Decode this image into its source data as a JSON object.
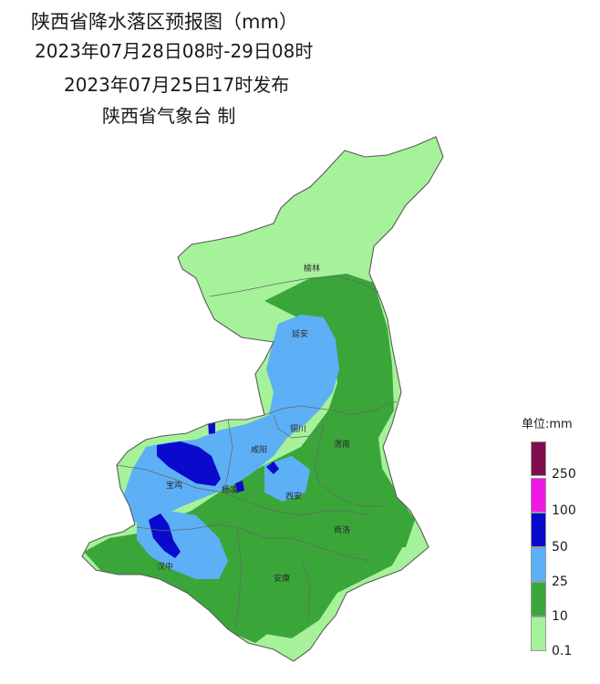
{
  "title": {
    "line1": "陕西省降水落区预报图（mm）",
    "line2": "2023年07月28日08时-29日08时",
    "line3": "2023年07月25日17时发布",
    "line4": "陕西省气象台 制"
  },
  "cities": [
    "榆林",
    "延安",
    "铜川",
    "渭南",
    "咸阳",
    "宝鸡",
    "杨凌",
    "西安",
    "商洛",
    "汉中",
    "安康"
  ],
  "legend": {
    "title": "单位:mm",
    "ticks": [
      "250",
      "100",
      "50",
      "25",
      "10",
      "0.1"
    ],
    "colors": [
      "#7f0e4f",
      "#f018e6",
      "#0a0acc",
      "#5db0f5",
      "#3aa63a",
      "#a6f29a"
    ]
  },
  "colors": {
    "light_green": "#a6f29a",
    "green": "#3aa63a",
    "blue": "#5db0f5",
    "dark_blue": "#0a0acc"
  }
}
